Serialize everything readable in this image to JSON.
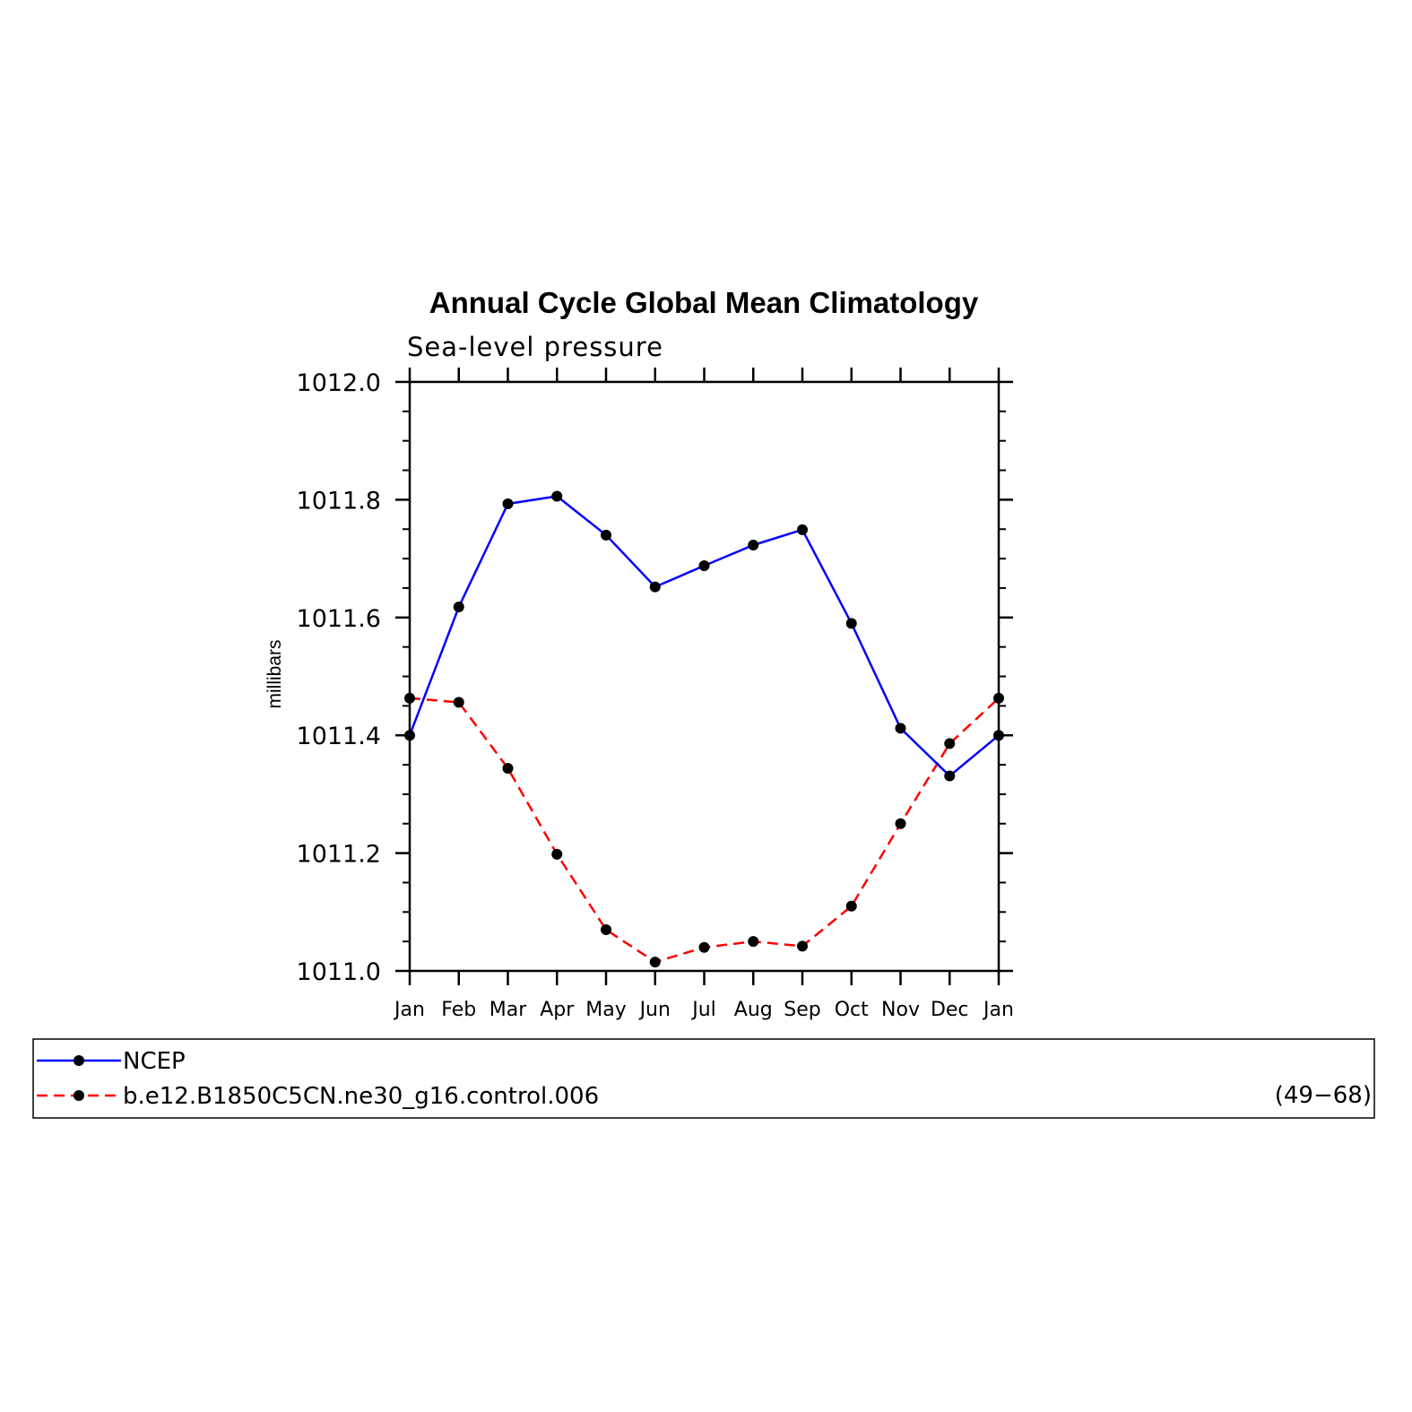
{
  "chart_data": {
    "type": "line",
    "title": "Annual Cycle Global Mean Climatology",
    "subtitle": "Sea-level pressure",
    "xlabel": "",
    "ylabel": "millibars",
    "categories": [
      "Jan",
      "Feb",
      "Mar",
      "Apr",
      "May",
      "Jun",
      "Jul",
      "Aug",
      "Sep",
      "Oct",
      "Nov",
      "Dec",
      "Jan"
    ],
    "ylim": [
      1011.0,
      1012.0
    ],
    "yticks": [
      "1011.0",
      "1011.2",
      "1011.4",
      "1011.6",
      "1011.8",
      "1012.0"
    ],
    "grid": false,
    "legend_position": "bottom",
    "series": [
      {
        "name": "NCEP",
        "color": "#0000ff",
        "dash": "solid",
        "marker": "dot",
        "values": [
          1011.4,
          1011.618,
          1011.793,
          1011.806,
          1011.74,
          1011.652,
          1011.688,
          1011.723,
          1011.749,
          1011.59,
          1011.412,
          1011.331,
          1011.4
        ]
      },
      {
        "name": "b.e12.B1850C5CN.ne30_g16.control.006",
        "color": "#ff0000",
        "dash": "dashed",
        "marker": "dot",
        "values": [
          1011.463,
          1011.456,
          1011.344,
          1011.198,
          1011.07,
          1011.015,
          1011.04,
          1011.05,
          1011.042,
          1011.11,
          1011.25,
          1011.386,
          1011.463
        ]
      }
    ],
    "annotations": [
      "(49−68)"
    ]
  }
}
